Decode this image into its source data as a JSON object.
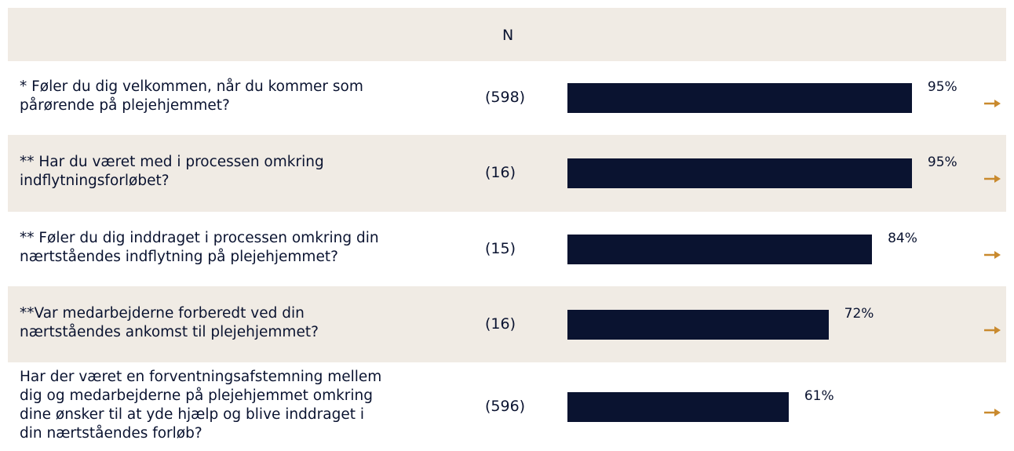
{
  "header": {
    "n_label": "N"
  },
  "bar_color": "#0a1330",
  "scale_max": 100,
  "rows": [
    {
      "question_lines": [
        "* Føler du dig velkommen, når du kommer som",
        "pårørende på plejehjemmet?"
      ],
      "n": "(598)",
      "value": 95,
      "value_label": "95%"
    },
    {
      "question_lines": [
        "** Har du været med i processen omkring",
        "indflytningsforløbet?"
      ],
      "n": "(16)",
      "value": 95,
      "value_label": "95%"
    },
    {
      "question_lines": [
        "** Føler du dig inddraget i processen omkring din",
        "nærtståendes indflytning på plejehjemmet?"
      ],
      "n": "(15)",
      "value": 84,
      "value_label": "84%"
    },
    {
      "question_lines": [
        "**Var medarbejderne forberedt ved din",
        "nærtståendes ankomst til plejehjemmet?"
      ],
      "n": "(16)",
      "value": 72,
      "value_label": "72%"
    },
    {
      "question_lines": [
        "Har der været en forventningsafstemning mellem",
        "dig og medarbejderne på plejehjemmet omkring",
        "dine ønsker til at yde hjælp og blive inddraget i",
        "din nærtståendes forløb?"
      ],
      "n": "(596)",
      "value": 61,
      "value_label": "61%"
    }
  ]
}
